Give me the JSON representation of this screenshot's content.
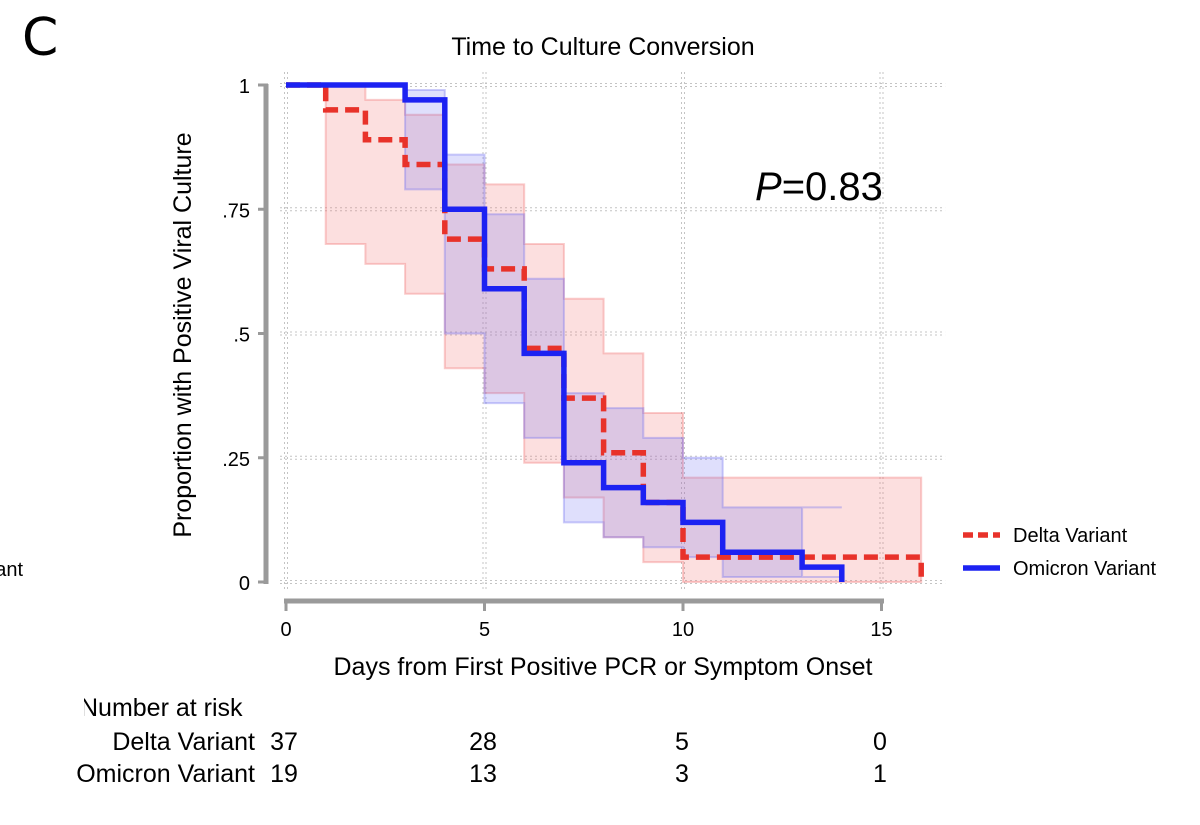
{
  "panel_label": "C",
  "chart_data": {
    "type": "line",
    "subtype": "kaplan-meier step curves with confidence bands",
    "title": "Time to Culture Conversion",
    "xlabel": "Days from First Positive PCR or Symptom Onset",
    "ylabel": "Proportion with Positive Viral Culture",
    "xlim": [
      0,
      16.3
    ],
    "ylim": [
      0,
      1
    ],
    "xticks": [
      0,
      5,
      10,
      15
    ],
    "xtick_labels": [
      "0",
      "5",
      "10",
      "15"
    ],
    "yticks": [
      0,
      0.25,
      0.5,
      0.75,
      1
    ],
    "ytick_labels": [
      "0",
      ".25",
      ".5",
      ".75",
      "1"
    ],
    "grid": true,
    "legend_position": "right",
    "annotation": {
      "prefix": "P",
      "suffix": "=0.83"
    },
    "series": [
      {
        "name": "Delta Variant",
        "color": "#e8322a",
        "dash": "dashed",
        "steps": [
          [
            0,
            1
          ],
          [
            1,
            0.95
          ],
          [
            2,
            0.89
          ],
          [
            3,
            0.84
          ],
          [
            4,
            0.69
          ],
          [
            5,
            0.63
          ],
          [
            6,
            0.47
          ],
          [
            7,
            0.37
          ],
          [
            8,
            0.26
          ],
          [
            9,
            0.16
          ],
          [
            10,
            0.05
          ],
          [
            16,
            0.0
          ]
        ],
        "ci_lower": [
          [
            0,
            1
          ],
          [
            1,
            0.68
          ],
          [
            2,
            0.64
          ],
          [
            3,
            0.58
          ],
          [
            4,
            0.43
          ],
          [
            5,
            0.38
          ],
          [
            6,
            0.24
          ],
          [
            7,
            0.17
          ],
          [
            8,
            0.09
          ],
          [
            9,
            0.04
          ],
          [
            10,
            0.0
          ],
          [
            16,
            0.0
          ]
        ],
        "ci_upper": [
          [
            0,
            1
          ],
          [
            1,
            1.0
          ],
          [
            2,
            0.97
          ],
          [
            3,
            0.94
          ],
          [
            4,
            0.84
          ],
          [
            5,
            0.8
          ],
          [
            6,
            0.68
          ],
          [
            7,
            0.57
          ],
          [
            8,
            0.46
          ],
          [
            9,
            0.34
          ],
          [
            10,
            0.21
          ],
          [
            16,
            0.21
          ]
        ]
      },
      {
        "name": "Omicron Variant",
        "color": "#1c22f2",
        "dash": "solid",
        "steps": [
          [
            0,
            1
          ],
          [
            3,
            0.97
          ],
          [
            4,
            0.75
          ],
          [
            5,
            0.59
          ],
          [
            6,
            0.46
          ],
          [
            7,
            0.24
          ],
          [
            8,
            0.19
          ],
          [
            9,
            0.16
          ],
          [
            10,
            0.12
          ],
          [
            11,
            0.06
          ],
          [
            13,
            0.03
          ],
          [
            14,
            0.0
          ]
        ],
        "ci_lower": [
          [
            0,
            1
          ],
          [
            3,
            0.79
          ],
          [
            4,
            0.5
          ],
          [
            5,
            0.36
          ],
          [
            6,
            0.29
          ],
          [
            7,
            0.12
          ],
          [
            8,
            0.09
          ],
          [
            9,
            0.07
          ],
          [
            10,
            0.05
          ],
          [
            11,
            0.01
          ],
          [
            13,
            0.01
          ],
          [
            14,
            0.01
          ]
        ],
        "ci_upper": [
          [
            0,
            1
          ],
          [
            3,
            0.99
          ],
          [
            4,
            0.86
          ],
          [
            5,
            0.74
          ],
          [
            6,
            0.61
          ],
          [
            7,
            0.38
          ],
          [
            8,
            0.35
          ],
          [
            9,
            0.29
          ],
          [
            10,
            0.25
          ],
          [
            11,
            0.15
          ],
          [
            13,
            0.15
          ],
          [
            14,
            0.15
          ]
        ]
      }
    ]
  },
  "risk_table": {
    "title": "Number at risk",
    "rows": [
      {
        "label": "Delta Variant",
        "values": [
          "37",
          "28",
          "5",
          "0"
        ]
      },
      {
        "label": "Omicron Variant",
        "values": [
          "19",
          "13",
          "3",
          "1"
        ]
      }
    ]
  },
  "partial_legend_text": "Variant"
}
